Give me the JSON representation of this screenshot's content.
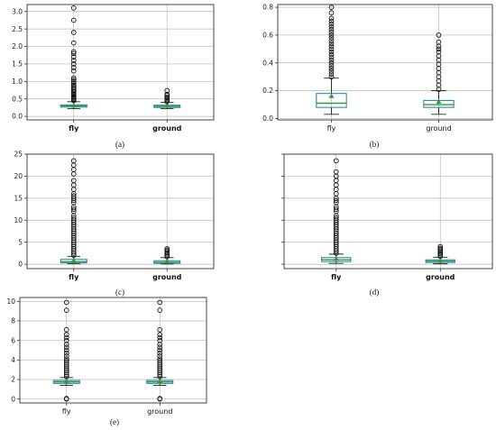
{
  "chart_data": [
    {
      "type": "box",
      "panel_label": "(a)",
      "categories": [
        "fly",
        "ground"
      ],
      "category_label_weight": "bold",
      "ylim": [
        -0.1,
        3.2
      ],
      "yticks": [
        0.0,
        0.5,
        1.0,
        1.5,
        2.0,
        2.5,
        3.0
      ],
      "ytick_labels": [
        "0.0",
        "0.5",
        "1.0",
        "1.5",
        "2.0",
        "2.5",
        "3.0"
      ],
      "grid": true,
      "boxes": [
        {
          "q1": 0.27,
          "median": 0.3,
          "q3": 0.33,
          "whisker_low": 0.22,
          "whisker_high": 0.42,
          "mean": 0.31,
          "fliers": [
            0.45,
            0.48,
            0.5,
            0.53,
            0.56,
            0.6,
            0.63,
            0.66,
            0.7,
            0.74,
            0.78,
            0.82,
            0.86,
            0.9,
            0.95,
            1.0,
            1.05,
            1.1,
            1.3,
            1.4,
            1.5,
            1.6,
            1.7,
            1.8,
            1.85,
            2.1,
            2.4,
            2.75,
            3.1
          ]
        },
        {
          "q1": 0.26,
          "median": 0.29,
          "q3": 0.32,
          "whisker_low": 0.22,
          "whisker_high": 0.4,
          "mean": 0.3,
          "fliers": [
            0.42,
            0.45,
            0.48,
            0.52,
            0.55,
            0.6,
            0.63,
            0.74
          ]
        }
      ]
    },
    {
      "type": "box",
      "panel_label": "(b)",
      "categories": [
        "fly",
        "ground"
      ],
      "category_label_weight": "normal",
      "ylim": [
        -0.01,
        0.82
      ],
      "yticks": [
        0.0,
        0.2,
        0.4,
        0.6,
        0.8
      ],
      "ytick_labels": [
        "0.0",
        "0.2",
        "0.4",
        "0.6",
        "0.8"
      ],
      "grid": true,
      "boxes": [
        {
          "q1": 0.08,
          "median": 0.11,
          "q3": 0.18,
          "whisker_low": 0.03,
          "whisker_high": 0.29,
          "mean": 0.16,
          "fliers": [
            0.3,
            0.32,
            0.34,
            0.36,
            0.38,
            0.4,
            0.42,
            0.44,
            0.46,
            0.48,
            0.5,
            0.52,
            0.54,
            0.56,
            0.58,
            0.6,
            0.62,
            0.64,
            0.66,
            0.68,
            0.7,
            0.72,
            0.76,
            0.8
          ]
        },
        {
          "q1": 0.08,
          "median": 0.1,
          "q3": 0.13,
          "whisker_low": 0.03,
          "whisker_high": 0.2,
          "mean": 0.12,
          "fliers": [
            0.21,
            0.24,
            0.27,
            0.3,
            0.33,
            0.36,
            0.39,
            0.42,
            0.45,
            0.48,
            0.5,
            0.52,
            0.55,
            0.6
          ]
        }
      ]
    },
    {
      "type": "box",
      "panel_label": "(c)",
      "categories": [
        "fly",
        "ground"
      ],
      "category_label_weight": "bold",
      "ylim": [
        -1,
        25
      ],
      "yticks": [
        0,
        5,
        10,
        15,
        20,
        25
      ],
      "ytick_labels": [
        "0",
        "5",
        "10",
        "15",
        "20",
        "25"
      ],
      "grid": true,
      "boxes": [
        {
          "q1": 0.3,
          "median": 0.6,
          "q3": 1.1,
          "whisker_low": 0.1,
          "whisker_high": 1.8,
          "mean": 0.8,
          "fliers": [
            2,
            2.5,
            3,
            3.5,
            4,
            4.5,
            5,
            5.5,
            6,
            6.5,
            7,
            7.5,
            8,
            8.5,
            9,
            9.5,
            10,
            10.5,
            11,
            12,
            12.5,
            13,
            14,
            14.5,
            15,
            15.5,
            16,
            17,
            18,
            19,
            20.5,
            21.5,
            22.5,
            23.5
          ]
        },
        {
          "q1": 0.2,
          "median": 0.45,
          "q3": 0.8,
          "whisker_low": 0.05,
          "whisker_high": 1.5,
          "mean": 0.6,
          "fliers": [
            1.7,
            2,
            2.3,
            2.6,
            2.9,
            3.2,
            3.5
          ]
        }
      ]
    },
    {
      "type": "box",
      "panel_label": "(d)",
      "categories": [
        "fly",
        "ground"
      ],
      "category_label_weight": "bold",
      "ylim": [
        -1,
        25
      ],
      "yticks": [
        0,
        5,
        10,
        15,
        20,
        25
      ],
      "ytick_labels": [],
      "grid": true,
      "boxes": [
        {
          "q1": 0.6,
          "median": 1.0,
          "q3": 1.5,
          "whisker_low": 0.2,
          "whisker_high": 2.3,
          "mean": 1.2,
          "fliers": [
            2.5,
            3,
            3.5,
            4,
            4.5,
            5,
            5.5,
            6,
            6.5,
            7,
            7.5,
            8,
            8.5,
            9,
            9.5,
            10,
            10.5,
            11,
            12,
            12.5,
            13,
            14,
            14.5,
            15,
            16,
            17,
            18,
            19,
            20,
            21,
            23.5
          ]
        },
        {
          "q1": 0.4,
          "median": 0.7,
          "q3": 1.0,
          "whisker_low": 0.1,
          "whisker_high": 1.6,
          "mean": 0.8,
          "fliers": [
            1.8,
            2.1,
            2.4,
            2.7,
            3,
            3.3,
            3.6,
            4
          ]
        }
      ]
    },
    {
      "type": "box",
      "panel_label": "(e)",
      "categories": [
        "fly",
        "ground"
      ],
      "category_label_weight": "normal",
      "ylim": [
        -0.4,
        10.4
      ],
      "yticks": [
        0,
        2,
        4,
        6,
        8,
        10
      ],
      "ytick_labels": [
        "0",
        "2",
        "4",
        "6",
        "8",
        "10"
      ],
      "grid": true,
      "boxes": [
        {
          "q1": 1.6,
          "median": 1.75,
          "q3": 1.9,
          "whisker_low": 1.4,
          "whisker_high": 2.2,
          "mean": 1.8,
          "fliers": [
            0,
            0.05,
            2.3,
            2.5,
            2.7,
            2.9,
            3.1,
            3.3,
            3.5,
            3.7,
            3.9,
            4.1,
            4.4,
            4.7,
            5,
            5.3,
            5.6,
            6,
            6.3,
            6.6,
            7.1,
            9.1,
            9.9
          ]
        },
        {
          "q1": 1.6,
          "median": 1.75,
          "q3": 1.9,
          "whisker_low": 1.4,
          "whisker_high": 2.2,
          "mean": 1.8,
          "fliers": [
            0,
            0.05,
            2.3,
            2.5,
            2.7,
            2.9,
            3.1,
            3.3,
            3.5,
            3.7,
            3.9,
            4.1,
            4.4,
            4.7,
            5,
            5.3,
            5.6,
            6,
            6.3,
            6.6,
            7.1,
            9.1,
            9.9
          ]
        }
      ]
    }
  ],
  "colors": {
    "box": "#1f77b4",
    "median": "#2ca02c",
    "mean_marker": "#2ca02c",
    "whisker": "#222222",
    "flier": "#111111",
    "grid": "#b8b8b8"
  }
}
